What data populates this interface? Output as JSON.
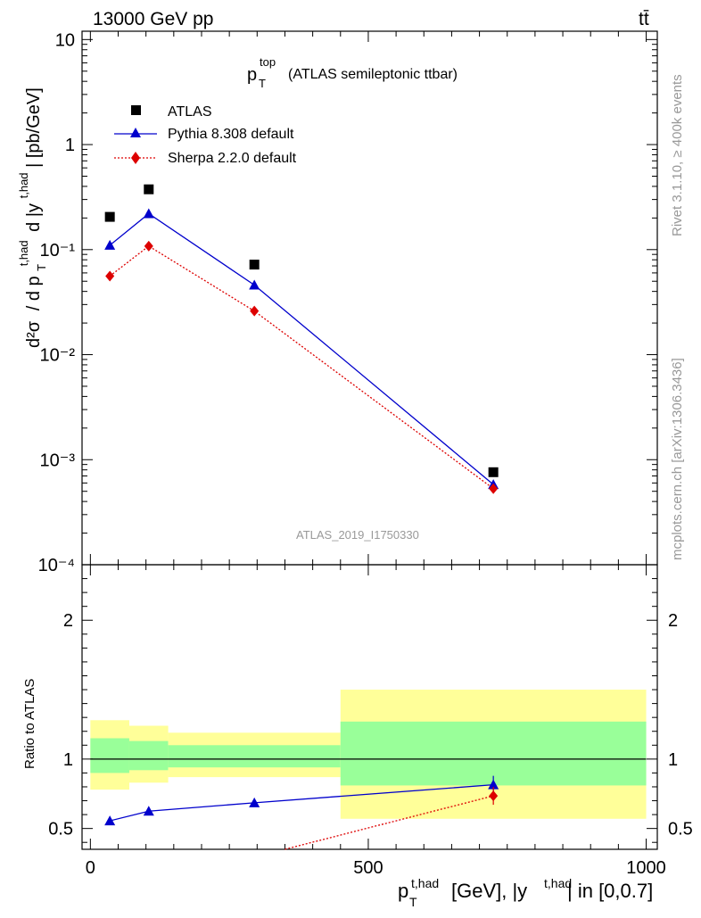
{
  "header": {
    "energy_label": "13000 GeV pp",
    "process_label": "tt̄"
  },
  "side_labels": {
    "rivet": "Rivet 3.1.10, ≥ 400k events",
    "mcplots": "mcplots.cern.ch [arXiv:1306.3436]"
  },
  "plot": {
    "title_main": "p",
    "title_sup": "top",
    "title_sub": "T",
    "title_rest": "(ATLAS semileptonic ttbar)",
    "analysis_id": "ATLAS_2019_I1750330",
    "y_label": "d²σ / d p_T^{t,had} d |y^{t,had}| [pb/GeV]",
    "y_label_parts": {
      "d2sigma": "d²σ",
      "slash_d": "/  d p",
      "pt_sub": "T",
      "pt_sup": "t,had",
      "d_abs": "d |y",
      "y_sup": "t,had",
      "units": "| [pb/GeV]"
    },
    "ratio_y_label": "Ratio to ATLAS",
    "x_label_parts": {
      "p": "p",
      "sub": "T",
      "sup": "t,had",
      "mid": "[GeV], |y",
      "sup2": "t,had",
      "end": "| in [0,0.7]"
    }
  },
  "legend": {
    "atlas": "ATLAS",
    "pythia": "Pythia 8.308 default",
    "sherpa": "Sherpa 2.2.0 default"
  },
  "colors": {
    "atlas": "#000000",
    "pythia": "#0000cc",
    "sherpa": "#dd0000",
    "band_inner": "#99ff99",
    "band_outer": "#ffff99",
    "watermark": "#999999"
  },
  "chart_data": {
    "type": "scatter",
    "x_range": [
      -15,
      1020
    ],
    "main": {
      "y_scale": "log",
      "ylim": [
        0.0001,
        12
      ],
      "y_tick_labels": [
        "10⁻⁴",
        "10⁻³",
        "10⁻²",
        "10⁻¹",
        "1",
        "10"
      ],
      "y_tick_values": [
        0.0001,
        0.001,
        0.01,
        0.1,
        1,
        10
      ],
      "series": [
        {
          "name": "ATLAS",
          "x": [
            35,
            105,
            295,
            725
          ],
          "values": [
            0.205,
            0.375,
            0.072,
            0.00076
          ]
        },
        {
          "name": "Pythia 8.308 default",
          "x": [
            35,
            105,
            295,
            725
          ],
          "values": [
            0.11,
            0.22,
            0.046,
            0.00058
          ]
        },
        {
          "name": "Sherpa 2.2.0 default",
          "x": [
            35,
            105,
            295,
            725
          ],
          "values": [
            0.056,
            0.108,
            0.026,
            0.00053
          ]
        }
      ]
    },
    "ratio": {
      "ylim": [
        0.35,
        2.4
      ],
      "y_tick_labels": [
        "0.5",
        "1",
        "2"
      ],
      "y_tick_values": [
        0.5,
        1,
        2
      ],
      "x_tick_labels": [
        "0",
        "500",
        "1000"
      ],
      "x_tick_values": [
        0,
        500,
        1000
      ],
      "bins": [
        {
          "lo": 0,
          "hi": 70,
          "inner": [
            0.9,
            1.15
          ],
          "outer": [
            0.78,
            1.28
          ]
        },
        {
          "lo": 70,
          "hi": 140,
          "inner": [
            0.92,
            1.13
          ],
          "outer": [
            0.83,
            1.24
          ]
        },
        {
          "lo": 140,
          "hi": 450,
          "inner": [
            0.94,
            1.1
          ],
          "outer": [
            0.87,
            1.19
          ]
        },
        {
          "lo": 450,
          "hi": 1000,
          "inner": [
            0.81,
            1.27
          ],
          "outer": [
            0.57,
            1.5
          ]
        }
      ],
      "series": [
        {
          "name": "Pythia 8.308 default",
          "x": [
            35,
            105,
            295,
            725
          ],
          "values": [
            0.555,
            0.625,
            0.685,
            0.815
          ]
        },
        {
          "name": "Sherpa 2.2.0 default",
          "x": [
            350,
            725
          ],
          "values": [
            0.35,
            0.735
          ],
          "first_point_off_scale": true
        }
      ]
    }
  }
}
